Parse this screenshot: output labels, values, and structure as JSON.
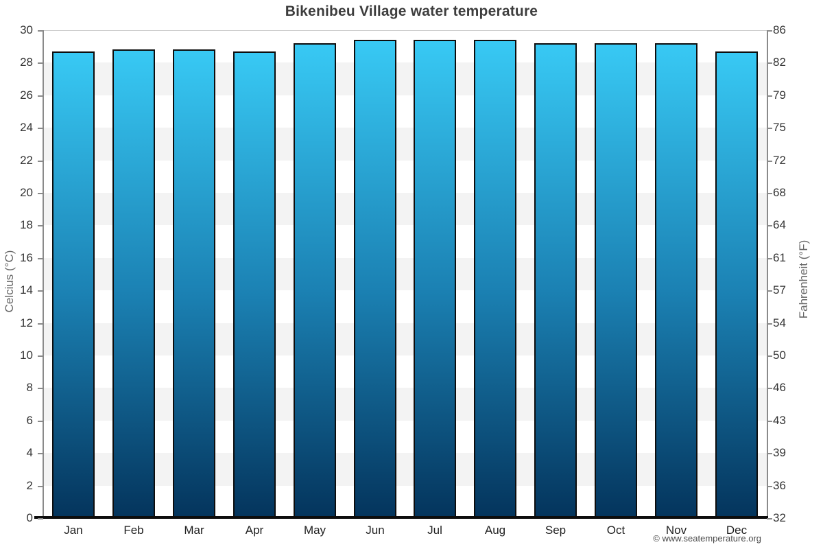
{
  "title": "Bikenibeu Village water temperature",
  "copyright": "© www.seatemperature.org",
  "chart_data": {
    "type": "bar",
    "title": "Bikenibeu Village water temperature",
    "categories": [
      "Jan",
      "Feb",
      "Mar",
      "Apr",
      "May",
      "Jun",
      "Jul",
      "Aug",
      "Sep",
      "Oct",
      "Nov",
      "Dec"
    ],
    "series": [
      {
        "name": "Water temperature (°C)",
        "values": [
          28.7,
          28.8,
          28.8,
          28.7,
          29.2,
          29.4,
          29.4,
          29.4,
          29.2,
          29.2,
          29.2,
          28.7
        ]
      }
    ],
    "xlabel": "",
    "ylabel_left": "Celcius (°C)",
    "ylabel_right": "Fahrenheit (°F)",
    "ylim": [
      0,
      30
    ],
    "yticks_celsius": [
      0,
      2,
      4,
      6,
      8,
      10,
      12,
      14,
      16,
      18,
      20,
      22,
      24,
      26,
      28,
      30
    ],
    "yticks_fahrenheit": [
      "32",
      "36",
      "39",
      "43",
      "46",
      "50",
      "54",
      "57",
      "61",
      "64",
      "68",
      "72",
      "75",
      "79",
      "82",
      "86"
    ],
    "grid": "alternating horizontal gray/white bands every 2°C",
    "legend": "none",
    "colors": {
      "bar_gradient_top": "#38c9f4",
      "bar_gradient_mid": "#1b81b3",
      "bar_gradient_bottom": "#04345c",
      "bar_border": "#0d0d0d",
      "band_gray": "#f3f3f3",
      "band_white": "#ffffff",
      "axis_line": "#8a8a8a",
      "bottom_axis_line": "#0d0d0d",
      "title_color": "#3d3d3d",
      "tick_label_color": "#333333",
      "axis_title_color": "#666666",
      "copyright_color": "#4a4a4a"
    }
  }
}
